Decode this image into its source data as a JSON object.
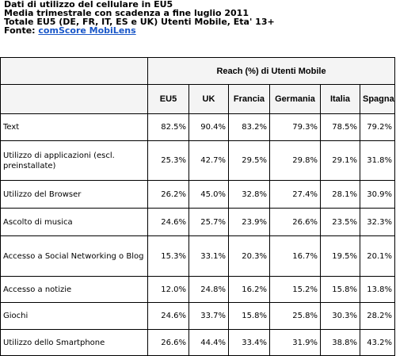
{
  "header": {
    "line1": "Dati di utilizzo del cellulare in EU5",
    "line2": "Media trimestrale con scadenza a fine luglio 2011",
    "line3": "Totale EU5 (DE, FR, IT, ES e UK) Utenti Mobile, Eta' 13+",
    "source_label": "Fonte: ",
    "source_link": "comScore MobiLens"
  },
  "table": {
    "group_header": "Reach (%) di Utenti Mobile",
    "columns": [
      "EU5",
      "UK",
      "Francia",
      "Germania",
      "Italia",
      "Spagna"
    ],
    "rows": [
      {
        "label": "Text",
        "values": [
          "82.5%",
          "90.4%",
          "83.2%",
          "79.3%",
          "78.5%",
          "79.2%"
        ]
      },
      {
        "label": "Utilizzo di applicazioni (escl. preinstallate)",
        "values": [
          "25.3%",
          "42.7%",
          "29.5%",
          "29.8%",
          "29.1%",
          "31.8%"
        ]
      },
      {
        "label": "Utilizzo del Browser",
        "values": [
          "26.2%",
          "45.0%",
          "32.8%",
          "27.4%",
          "28.1%",
          "30.9%"
        ]
      },
      {
        "label": "Ascolto di musica",
        "values": [
          "24.6%",
          "25.7%",
          "23.9%",
          "26.6%",
          "23.5%",
          "32.3%"
        ]
      },
      {
        "label": "Accesso a Social Networking o Blog",
        "values": [
          "15.3%",
          "33.1%",
          "20.3%",
          "16.7%",
          "19.5%",
          "20.1%"
        ]
      },
      {
        "label": "Accesso a notizie",
        "values": [
          "12.0%",
          "24.8%",
          "16.2%",
          "15.2%",
          "15.8%",
          "13.8%"
        ]
      },
      {
        "label": "Giochi",
        "values": [
          "24.6%",
          "33.7%",
          "15.8%",
          "25.8%",
          "30.3%",
          "28.2%"
        ]
      },
      {
        "label": "Utilizzo dello Smartphone",
        "values": [
          "26.6%",
          "44.4%",
          "33.4%",
          "31.9%",
          "38.8%",
          "43.2%"
        ]
      }
    ]
  }
}
